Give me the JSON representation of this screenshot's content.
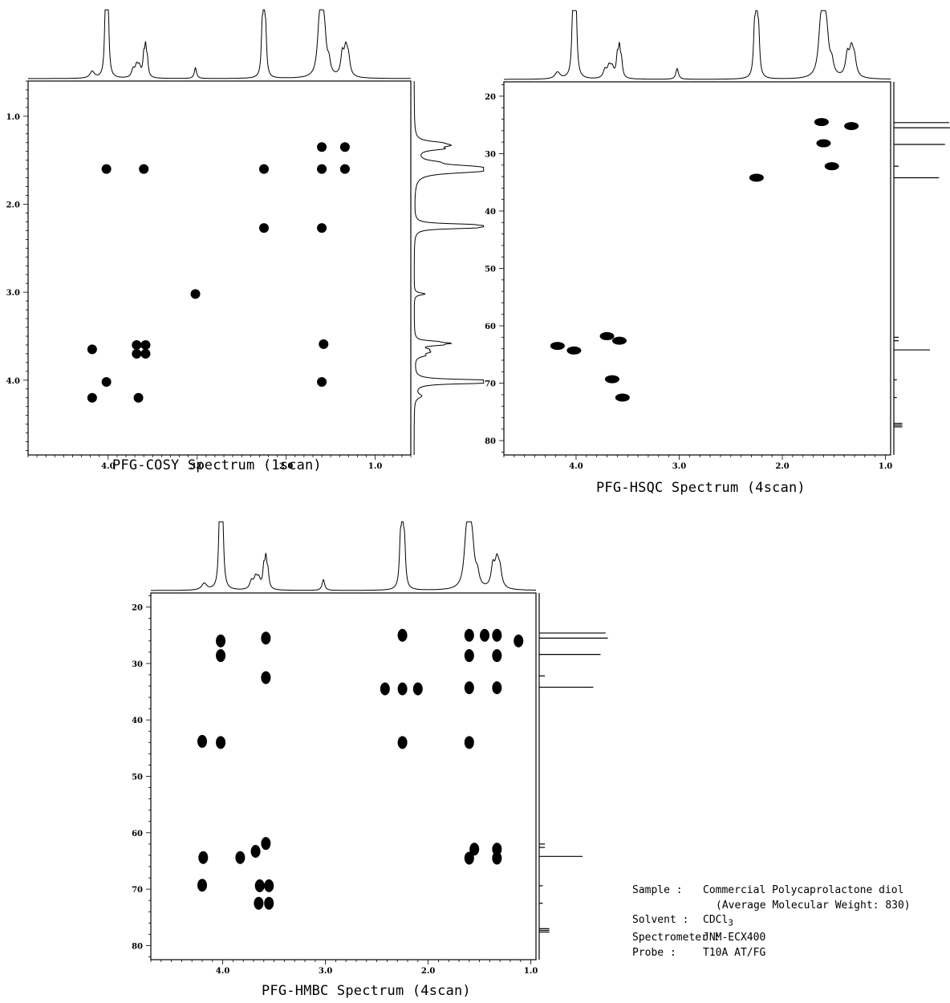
{
  "chart_data": [
    {
      "type": "scatter",
      "title": "PFG-COSY Spectrum (1scan)",
      "xlabel": "",
      "ylabel": "",
      "xlim": [
        4.9,
        0.6
      ],
      "ylim": [
        0.6,
        4.85
      ],
      "x_ticks": [
        "4.0",
        "3.0",
        "2.0",
        "1.0"
      ],
      "y_ticks": [
        "1.0",
        "2.0",
        "3.0",
        "4.0"
      ],
      "peaks": [
        {
          "x": 1.6,
          "y": 1.35
        },
        {
          "x": 1.34,
          "y": 1.35
        },
        {
          "x": 4.02,
          "y": 1.6
        },
        {
          "x": 3.6,
          "y": 1.6
        },
        {
          "x": 2.25,
          "y": 1.6
        },
        {
          "x": 1.6,
          "y": 1.6
        },
        {
          "x": 1.34,
          "y": 1.6
        },
        {
          "x": 2.25,
          "y": 2.27
        },
        {
          "x": 1.6,
          "y": 2.27
        },
        {
          "x": 3.02,
          "y": 3.02
        },
        {
          "x": 1.58,
          "y": 3.59
        },
        {
          "x": 4.18,
          "y": 3.65
        },
        {
          "x": 3.68,
          "y": 3.6
        },
        {
          "x": 3.58,
          "y": 3.6
        },
        {
          "x": 3.68,
          "y": 3.7
        },
        {
          "x": 3.58,
          "y": 3.7
        },
        {
          "x": 4.02,
          "y": 4.02
        },
        {
          "x": 1.6,
          "y": 4.02
        },
        {
          "x": 4.18,
          "y": 4.2
        },
        {
          "x": 3.66,
          "y": 4.2
        }
      ]
    },
    {
      "type": "scatter",
      "title": "PFG-HSQC Spectrum (4scan)",
      "xlabel": "",
      "ylabel": "",
      "xlim": [
        4.7,
        0.95
      ],
      "ylim": [
        17.5,
        82.5
      ],
      "x_ticks": [
        "4.0",
        "3.0",
        "2.0",
        "1.0"
      ],
      "y_ticks": [
        "20",
        "30",
        "40",
        "50",
        "60",
        "70",
        "80"
      ],
      "peaks": [
        {
          "x": 1.62,
          "y": 24.5
        },
        {
          "x": 1.33,
          "y": 25.2
        },
        {
          "x": 1.6,
          "y": 28.2
        },
        {
          "x": 1.52,
          "y": 32.2
        },
        {
          "x": 2.25,
          "y": 34.2
        },
        {
          "x": 4.18,
          "y": 63.5
        },
        {
          "x": 4.02,
          "y": 64.3
        },
        {
          "x": 3.7,
          "y": 61.8
        },
        {
          "x": 3.58,
          "y": 62.6
        },
        {
          "x": 3.65,
          "y": 69.3
        },
        {
          "x": 3.55,
          "y": 72.5
        }
      ]
    },
    {
      "type": "scatter",
      "title": "PFG-HMBC Spectrum (4scan)",
      "xlabel": "",
      "ylabel": "",
      "xlim": [
        4.7,
        0.95
      ],
      "ylim": [
        17.5,
        82.5
      ],
      "x_ticks": [
        "4.0",
        "3.0",
        "2.0",
        "1.0"
      ],
      "y_ticks": [
        "20",
        "30",
        "40",
        "50",
        "60",
        "70",
        "80"
      ],
      "peaks": [
        {
          "x": 4.02,
          "y": 26.0
        },
        {
          "x": 4.02,
          "y": 28.6
        },
        {
          "x": 3.58,
          "y": 25.5
        },
        {
          "x": 3.58,
          "y": 32.5
        },
        {
          "x": 2.25,
          "y": 25.0
        },
        {
          "x": 2.25,
          "y": 34.5
        },
        {
          "x": 2.1,
          "y": 34.5
        },
        {
          "x": 2.42,
          "y": 34.5
        },
        {
          "x": 1.6,
          "y": 25.0
        },
        {
          "x": 1.6,
          "y": 28.6
        },
        {
          "x": 1.6,
          "y": 34.3
        },
        {
          "x": 1.33,
          "y": 25.0
        },
        {
          "x": 1.33,
          "y": 28.6
        },
        {
          "x": 1.33,
          "y": 34.3
        },
        {
          "x": 1.45,
          "y": 25.0
        },
        {
          "x": 1.12,
          "y": 26.0
        },
        {
          "x": 4.2,
          "y": 43.8
        },
        {
          "x": 4.02,
          "y": 44.0
        },
        {
          "x": 2.25,
          "y": 44.0
        },
        {
          "x": 1.6,
          "y": 44.0
        },
        {
          "x": 3.58,
          "y": 61.9
        },
        {
          "x": 3.68,
          "y": 63.3
        },
        {
          "x": 3.83,
          "y": 64.4
        },
        {
          "x": 4.19,
          "y": 64.4
        },
        {
          "x": 1.55,
          "y": 62.9
        },
        {
          "x": 1.33,
          "y": 62.9
        },
        {
          "x": 1.6,
          "y": 64.5
        },
        {
          "x": 1.33,
          "y": 64.5
        },
        {
          "x": 4.2,
          "y": 69.3
        },
        {
          "x": 3.64,
          "y": 69.4
        },
        {
          "x": 3.55,
          "y": 69.4
        },
        {
          "x": 3.65,
          "y": 72.5
        },
        {
          "x": 3.55,
          "y": 72.5
        }
      ]
    }
  ],
  "captions": {
    "cosy": "PFG-COSY Spectrum (1scan)",
    "hsqc": "PFG-HSQC Spectrum (4scan)",
    "hmbc": "PFG-HMBC Spectrum (4scan)"
  },
  "sample_info": {
    "sample_label": "Sample :",
    "sample_value": "Commercial Polycaprolactone diol",
    "sample_value_2": "(Average Molecular Weight: 830)",
    "solvent_label": "Solvent :",
    "solvent_value": "CDCl",
    "solvent_subscript": "3",
    "spectrometer_label": "Spectrometer :",
    "spectrometer_value": "JNM-ECX400",
    "probe_label": "Probe :",
    "probe_value": "T10A AT/FG"
  }
}
